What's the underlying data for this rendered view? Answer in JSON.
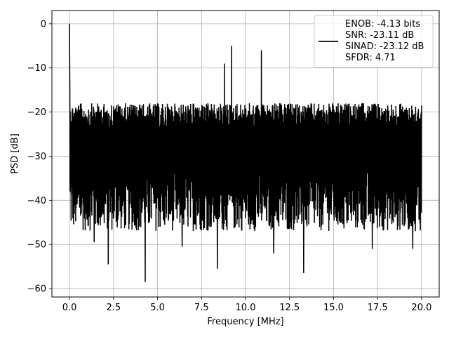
{
  "chart_data": {
    "type": "line",
    "xlabel": "Frequency [MHz]",
    "ylabel": "PSD [dB]",
    "xlim": [
      -1.0,
      21.0
    ],
    "ylim": [
      -61.9,
      3.0
    ],
    "xticks": [
      0.0,
      2.5,
      5.0,
      7.5,
      10.0,
      12.5,
      15.0,
      17.5,
      20.0
    ],
    "xtick_labels": [
      "0.0",
      "2.5",
      "5.0",
      "7.5",
      "10.0",
      "12.5",
      "15.0",
      "17.5",
      "20.0"
    ],
    "yticks": [
      0,
      -10,
      -20,
      -30,
      -40,
      -50,
      -60
    ],
    "ytick_labels": [
      "0",
      "−10",
      "−20",
      "−30",
      "−40",
      "−50",
      "−60"
    ],
    "grid": true,
    "legend_position": "top-right",
    "line_color": "#000000",
    "legend": [
      "ENOB: -4.13 bits",
      "SNR: -23.11 dB",
      "SINAD: -23.12 dB",
      "SFDR: 4.71"
    ],
    "series": [
      {
        "x_range": [
          0.0,
          20.0
        ],
        "n_points": 2000,
        "floor_band_db": [
          -47,
          -18
        ],
        "peak_db": 0.0,
        "peak_x": 0.0,
        "outliers": [
          {
            "x": 9.2,
            "y": -5.0
          },
          {
            "x": 10.9,
            "y": -6.0
          },
          {
            "x": 8.8,
            "y": -9.0
          },
          {
            "x": 4.3,
            "y": -58.5
          },
          {
            "x": 13.3,
            "y": -56.5
          },
          {
            "x": 2.2,
            "y": -54.5
          },
          {
            "x": 8.4,
            "y": -55.5
          },
          {
            "x": 6.4,
            "y": -50.5
          },
          {
            "x": 1.4,
            "y": -49.5
          },
          {
            "x": 17.2,
            "y": -51.0
          },
          {
            "x": 19.5,
            "y": -51.0
          },
          {
            "x": 11.6,
            "y": -52.0
          }
        ]
      }
    ]
  }
}
